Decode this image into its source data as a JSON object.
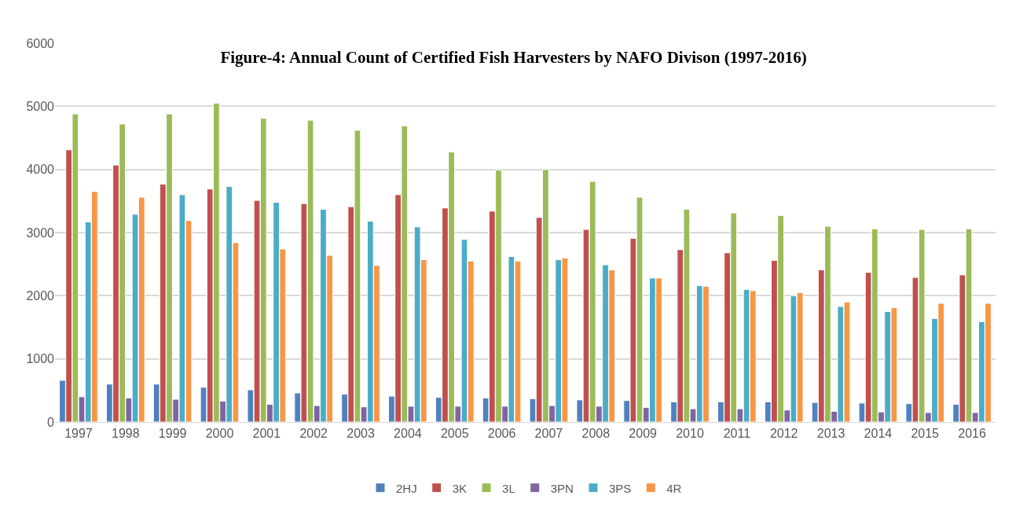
{
  "chart_data": {
    "type": "bar",
    "title": "Figure-4: Annual Count of Certified Fish Harvesters by NAFO Divison (1997-2016)",
    "categories": [
      "1997",
      "1998",
      "1999",
      "2000",
      "2001",
      "2002",
      "2003",
      "2004",
      "2005",
      "2006",
      "2007",
      "2008",
      "2009",
      "2010",
      "2011",
      "2012",
      "2013",
      "2014",
      "2015",
      "2016"
    ],
    "series": [
      {
        "name": "2HJ",
        "color": "#4f81bd",
        "values": [
          660,
          600,
          600,
          550,
          510,
          460,
          440,
          410,
          390,
          380,
          370,
          350,
          340,
          320,
          320,
          320,
          310,
          300,
          290,
          280
        ]
      },
      {
        "name": "3K",
        "color": "#c0504d",
        "values": [
          4310,
          4070,
          3770,
          3690,
          3510,
          3460,
          3410,
          3600,
          3390,
          3340,
          3240,
          3050,
          2910,
          2730,
          2680,
          2560,
          2410,
          2370,
          2290,
          2330
        ]
      },
      {
        "name": "3L",
        "color": "#9bbb59",
        "values": [
          4880,
          4720,
          4880,
          5050,
          4810,
          4780,
          4620,
          4690,
          4280,
          3990,
          4000,
          3810,
          3560,
          3370,
          3310,
          3270,
          3100,
          3060,
          3050,
          3060
        ]
      },
      {
        "name": "3PN",
        "color": "#8064a2",
        "values": [
          400,
          380,
          360,
          330,
          280,
          260,
          240,
          250,
          250,
          250,
          260,
          250,
          230,
          210,
          210,
          190,
          170,
          160,
          150,
          150
        ]
      },
      {
        "name": "3PS",
        "color": "#4bacc6",
        "values": [
          3170,
          3290,
          3600,
          3730,
          3480,
          3370,
          3180,
          3090,
          2890,
          2620,
          2570,
          2490,
          2280,
          2160,
          2100,
          2000,
          1830,
          1750,
          1640,
          1590
        ]
      },
      {
        "name": "4R",
        "color": "#f79646",
        "values": [
          3650,
          3560,
          3190,
          2840,
          2740,
          2640,
          2480,
          2570,
          2550,
          2550,
          2600,
          2410,
          2280,
          2150,
          2080,
          2050,
          1900,
          1810,
          1880,
          1880
        ]
      }
    ],
    "ylim": [
      0,
      6000
    ],
    "yticks": [
      0,
      1000,
      2000,
      3000,
      4000,
      5000,
      6000
    ],
    "grid": "y",
    "legend": "bottom"
  }
}
